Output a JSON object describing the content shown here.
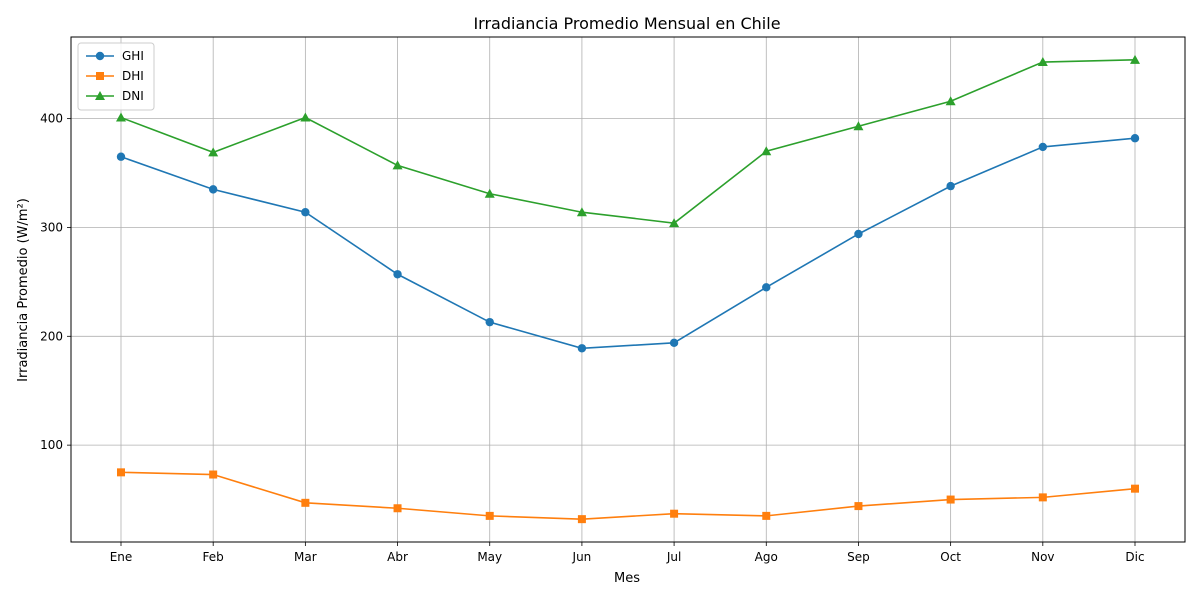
{
  "chart_data": {
    "type": "line",
    "title": "Irradiancia Promedio Mensual en Chile",
    "xlabel": "Mes",
    "ylabel": "Irradiancia Promedio (W/m²)",
    "categories": [
      "Ene",
      "Feb",
      "Mar",
      "Abr",
      "May",
      "Jun",
      "Jul",
      "Ago",
      "Sep",
      "Oct",
      "Nov",
      "Dic"
    ],
    "ylim": [
      11,
      475
    ],
    "yticks": [
      100,
      200,
      300,
      400
    ],
    "grid": true,
    "legend_position": "top-left",
    "series": [
      {
        "name": "GHI",
        "color": "#1f77b4",
        "marker": "circle",
        "values": [
          365,
          335,
          314,
          257,
          213,
          189,
          194,
          245,
          294,
          338,
          374,
          382
        ]
      },
      {
        "name": "DHI",
        "color": "#ff7f0e",
        "marker": "square",
        "values": [
          75,
          73,
          47,
          42,
          35,
          32,
          37,
          35,
          44,
          50,
          52,
          60
        ]
      },
      {
        "name": "DNI",
        "color": "#2ca02c",
        "marker": "triangle",
        "values": [
          401,
          369,
          401,
          357,
          331,
          314,
          304,
          370,
          393,
          416,
          452,
          454
        ]
      }
    ]
  }
}
